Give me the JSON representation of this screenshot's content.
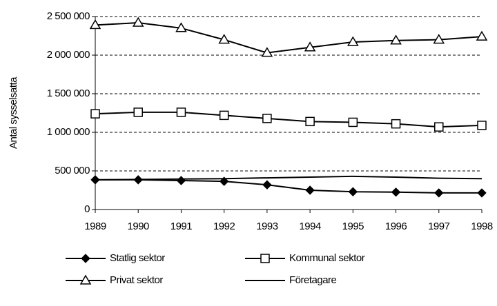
{
  "chart_data": {
    "type": "line",
    "y_label": "Antal sysselsatta",
    "x": [
      1989,
      1990,
      1991,
      1992,
      1993,
      1994,
      1995,
      1996,
      1997,
      1998
    ],
    "xlim": [
      1989,
      1998
    ],
    "xticks": [
      1989,
      1990,
      1991,
      1992,
      1993,
      1994,
      1995,
      1996,
      1997,
      1998
    ],
    "ylim": [
      0,
      2500000
    ],
    "yticks": [
      0,
      {
        "value": 500000,
        "label": "500 000"
      },
      {
        "value": 1000000,
        "label": "1 000 000"
      },
      {
        "value": 1500000,
        "label": "1 500 000"
      },
      {
        "value": 2000000,
        "label": "2 000 000"
      },
      {
        "value": 2500000,
        "label": "2 500 000"
      }
    ],
    "grid": true,
    "legend": "bottom",
    "series": [
      {
        "name": "Statlig sektor",
        "color": "#000000",
        "marker": "diamond",
        "values": [
          385000,
          385000,
          375000,
          365000,
          320000,
          250000,
          230000,
          225000,
          215000,
          215000
        ]
      },
      {
        "name": "Kommunal sektor",
        "color": "#000000",
        "marker": "square",
        "values": [
          1240000,
          1260000,
          1260000,
          1220000,
          1180000,
          1140000,
          1130000,
          1110000,
          1070000,
          1090000
        ]
      },
      {
        "name": "Privat sektor",
        "color": "#000000",
        "marker": "triangle",
        "values": [
          2390000,
          2420000,
          2350000,
          2200000,
          2030000,
          2100000,
          2170000,
          2190000,
          2200000,
          2240000
        ]
      },
      {
        "name": "Företagare",
        "color": "#000000",
        "marker": "none",
        "values": [
          385000,
          390000,
          395000,
          400000,
          410000,
          420000,
          430000,
          420000,
          405000,
          400000
        ]
      }
    ]
  }
}
